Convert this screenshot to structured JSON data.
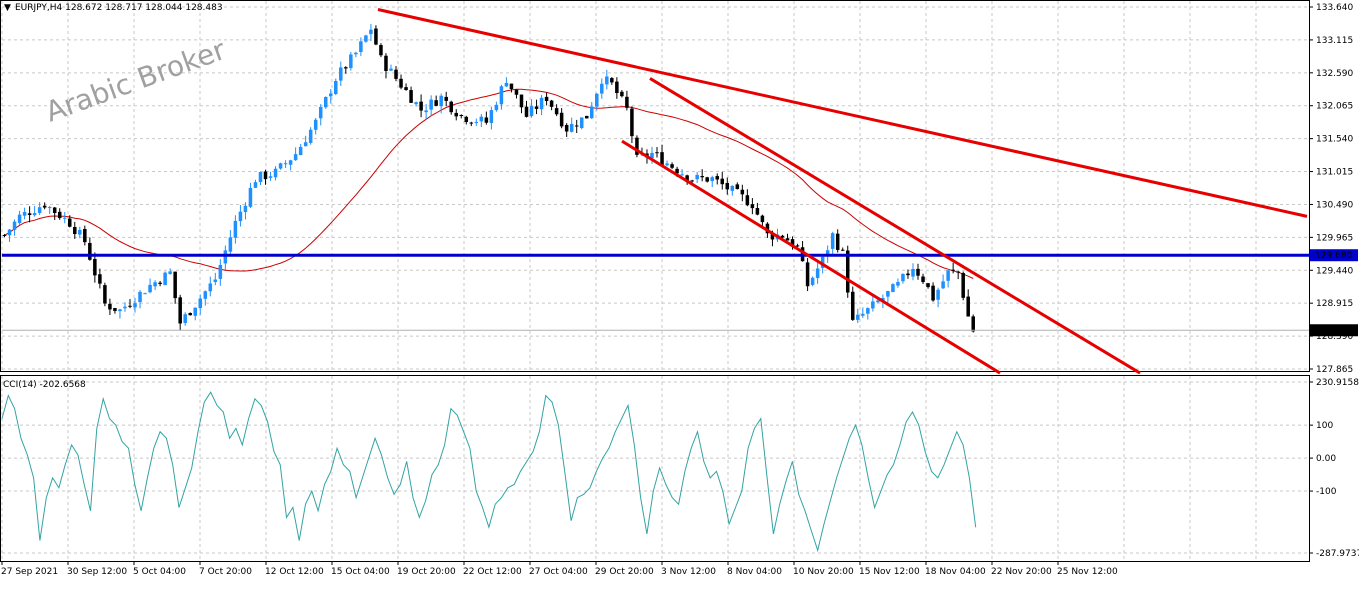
{
  "window": {
    "symbol_header": "EURJPY,H4  128.672 128.717 128.044 128.483",
    "watermark": "Arabic Broker"
  },
  "chart_data": [
    {
      "type": "candlestick",
      "title": "EURJPY,H4",
      "ohlc_last": {
        "open": 128.672,
        "high": 128.717,
        "low": 128.044,
        "close": 128.483
      },
      "ylim": [
        127.865,
        133.64
      ],
      "y_ticks": [
        "133.640",
        "133.115",
        "132.590",
        "132.065",
        "131.540",
        "131.015",
        "130.490",
        "129.965",
        "129.440",
        "128.915",
        "128.390",
        "127.865"
      ],
      "x_ticks": [
        "27 Sep 2021",
        "30 Sep 12:00",
        "5 Oct 04:00",
        "7 Oct 20:00",
        "12 Oct 12:00",
        "15 Oct 04:00",
        "19 Oct 20:00",
        "22 Oct 12:00",
        "27 Oct 04:00",
        "29 Oct 20:00",
        "3 Nov 12:00",
        "8 Nov 04:00",
        "10 Nov 20:00",
        "15 Nov 12:00",
        "18 Nov 04:00",
        "22 Nov 20:00",
        "25 Nov 12:00"
      ],
      "close_path": [
        [
          0,
          130.0
        ],
        [
          3,
          130.3
        ],
        [
          8,
          130.5
        ],
        [
          13,
          130.2
        ],
        [
          16,
          129.9
        ],
        [
          20,
          128.9
        ],
        [
          23,
          128.8
        ],
        [
          26,
          129.0
        ],
        [
          29,
          129.2
        ],
        [
          31,
          129.3
        ],
        [
          33,
          129.4
        ],
        [
          35,
          128.6
        ],
        [
          38,
          128.9
        ],
        [
          42,
          129.3
        ],
        [
          46,
          130.2
        ],
        [
          50,
          130.9
        ],
        [
          54,
          131.0
        ],
        [
          58,
          131.3
        ],
        [
          62,
          131.8
        ],
        [
          66,
          132.5
        ],
        [
          70,
          132.9
        ],
        [
          73,
          133.3
        ],
        [
          75,
          132.8
        ],
        [
          79,
          132.4
        ],
        [
          83,
          132.0
        ],
        [
          87,
          132.2
        ],
        [
          91,
          131.9
        ],
        [
          96,
          131.8
        ],
        [
          100,
          132.5
        ],
        [
          104,
          131.9
        ],
        [
          108,
          132.2
        ],
        [
          112,
          131.7
        ],
        [
          116,
          131.9
        ],
        [
          119,
          132.5
        ],
        [
          121,
          132.4
        ],
        [
          124,
          132.0
        ],
        [
          126,
          131.2
        ],
        [
          129,
          131.3
        ],
        [
          133,
          131.1
        ],
        [
          137,
          130.9
        ],
        [
          141,
          130.9
        ],
        [
          145,
          130.7
        ],
        [
          149,
          130.5
        ],
        [
          152,
          130.0
        ],
        [
          155,
          130.0
        ],
        [
          158,
          129.8
        ],
        [
          160,
          129.2
        ],
        [
          163,
          129.6
        ],
        [
          165,
          130.0
        ],
        [
          167,
          129.7
        ],
        [
          169,
          128.6
        ],
        [
          172,
          128.8
        ],
        [
          175,
          129.0
        ],
        [
          178,
          129.2
        ],
        [
          181,
          129.5
        ],
        [
          183,
          129.3
        ],
        [
          185,
          129.0
        ],
        [
          188,
          129.4
        ],
        [
          190,
          129.4
        ],
        [
          192,
          128.7
        ],
        [
          193,
          128.48
        ]
      ],
      "last_price": 128.483,
      "horizontal_level": 129.68,
      "moving_average": {
        "color": "#cc0000"
      },
      "trendlines": [
        {
          "label": "descending resistance",
          "from": [
            "19 Oct 00:00",
            133.6
          ],
          "to": [
            "right edge",
            130.3
          ]
        },
        {
          "label": "channel upper",
          "from": [
            "3 Nov 12:00",
            132.5
          ],
          "to": [
            "right edge",
            127.8
          ]
        },
        {
          "label": "channel lower",
          "from": [
            "29 Oct 20:00",
            131.5
          ],
          "to": [
            "22 Nov 20:00",
            127.8
          ]
        }
      ],
      "colors": {
        "bull": "#1e90ff",
        "bear": "#000000",
        "level": "#0000cc",
        "trend": "#e60000",
        "grid": "#c8c8c8"
      }
    },
    {
      "type": "line",
      "title": "CCI(14) -202.6568",
      "indicator": "CCI(14)",
      "last_value": -202.6568,
      "ylim": [
        -287.9737,
        230.9158
      ],
      "y_ticks": [
        "230.9158",
        "100",
        "0.00",
        "-100",
        "-287.9737"
      ],
      "values": [
        120,
        190,
        150,
        60,
        10,
        -60,
        -250,
        -120,
        -60,
        -90,
        -20,
        40,
        10,
        -80,
        -160,
        90,
        180,
        120,
        100,
        50,
        30,
        -80,
        -160,
        -60,
        30,
        80,
        60,
        -20,
        -150,
        -90,
        -30,
        80,
        170,
        200,
        160,
        140,
        60,
        90,
        40,
        120,
        180,
        160,
        110,
        20,
        -20,
        -180,
        -150,
        -250,
        -140,
        -100,
        -160,
        -80,
        -40,
        30,
        -20,
        -40,
        -120,
        -60,
        0,
        60,
        10,
        -60,
        -110,
        -80,
        -10,
        -120,
        -180,
        -130,
        -50,
        -20,
        40,
        150,
        130,
        80,
        30,
        -100,
        -150,
        -210,
        -140,
        -120,
        -90,
        -80,
        -40,
        -10,
        20,
        80,
        190,
        170,
        100,
        -40,
        -190,
        -120,
        -110,
        -90,
        -40,
        0,
        30,
        80,
        120,
        160,
        40,
        -120,
        -230,
        -100,
        -30,
        -80,
        -120,
        -140,
        -40,
        30,
        80,
        -10,
        -60,
        -40,
        -100,
        -200,
        -150,
        -100,
        30,
        90,
        120,
        -60,
        -230,
        -140,
        -70,
        -10,
        -110,
        -160,
        -220,
        -280,
        -200,
        -130,
        -60,
        0,
        60,
        100,
        40,
        -60,
        -150,
        -100,
        -50,
        -20,
        40,
        110,
        140,
        100,
        20,
        -40,
        -60,
        -20,
        30,
        80,
        40,
        -60,
        -210
      ],
      "color": "#33a3a3"
    }
  ]
}
